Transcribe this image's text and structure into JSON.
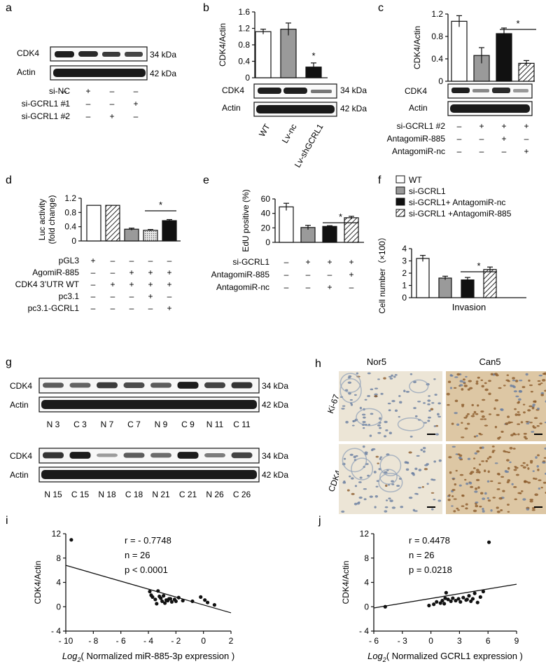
{
  "colors": {
    "open": "#ffffff",
    "gray": "#9a9a9a",
    "black": "#111111",
    "dotted": "#d8d8d8",
    "hatched": "#ffffff",
    "ihc_bg": "#e8dcc6",
    "ihc_blue": "#6a7ea0",
    "ihc_brown": "#8b5a2b"
  },
  "panel_a": {
    "letter": "a",
    "bands": [
      "CDK4",
      "Actin"
    ],
    "kda": [
      "34 kDa",
      "42 kDa"
    ],
    "rows": [
      {
        "label": "si-NC",
        "marks": [
          "–",
          "+",
          "–",
          "–"
        ]
      },
      {
        "label": "si-GCRL1 #1",
        "marks": [
          "–",
          "–",
          "–",
          "+"
        ]
      },
      {
        "label": "si-GCRL1 #2",
        "marks": [
          "–",
          "–",
          "+",
          "–"
        ]
      }
    ]
  },
  "panel_b": {
    "letter": "b",
    "bands": [
      "CDK4",
      "Actin"
    ],
    "kda": [
      "34 kDa",
      "42 kDa"
    ],
    "lanes": [
      "WT",
      "Lv-nc",
      "Lv-shGCRL1"
    ],
    "star": "*"
  },
  "panel_c": {
    "letter": "c",
    "bands": [
      "CDK4",
      "Actin"
    ],
    "star": "*",
    "rows": [
      {
        "label": "si-GCRL1 #2",
        "marks": [
          "–",
          "+",
          "+",
          "+"
        ]
      },
      {
        "label": "AntagomiR-885",
        "marks": [
          "–",
          "–",
          "+",
          "–"
        ]
      },
      {
        "label": "AntagomiR-nc",
        "marks": [
          "–",
          "–",
          "–",
          "+"
        ]
      }
    ]
  },
  "panel_d": {
    "letter": "d",
    "star": "*",
    "rows": [
      {
        "label": "pGL3",
        "marks": [
          "+",
          "–",
          "–",
          "–",
          "–"
        ]
      },
      {
        "label": "AgomiR-885",
        "marks": [
          "–",
          "–",
          "+",
          "+",
          "+"
        ]
      },
      {
        "label": "CDK4 3’UTR WT",
        "marks": [
          "–",
          "+",
          "+",
          "+",
          "+"
        ]
      },
      {
        "label": "pc3.1",
        "marks": [
          "–",
          "–",
          "–",
          "+",
          "–"
        ]
      },
      {
        "label": "pc3.1-GCRL1",
        "marks": [
          "–",
          "–",
          "–",
          "–",
          "+"
        ]
      }
    ]
  },
  "panel_e": {
    "letter": "e",
    "star": "*",
    "rows": [
      {
        "label": "si-GCRL1",
        "marks": [
          "–",
          "+",
          "+",
          "+"
        ]
      },
      {
        "label": "AntagomiR-885",
        "marks": [
          "–",
          "–",
          "–",
          "+"
        ]
      },
      {
        "label": "AntagomiR-nc",
        "marks": [
          "–",
          "–",
          "+",
          "–"
        ]
      }
    ]
  },
  "panel_f": {
    "letter": "f",
    "star": "*",
    "legend": [
      "WT",
      "si-GCRL1",
      "si-GCRL1+ AntagomiR-nc",
      "si-GCRL1 +AntagomiR-885"
    ]
  },
  "panel_g": {
    "letter": "g",
    "bands": [
      "CDK4",
      "Actin"
    ],
    "kda": [
      "34 kDa",
      "42 kDa"
    ],
    "lanes1": [
      "N 3",
      "C 3",
      "N 7",
      "C 7",
      "N 9",
      "C 9",
      "N 11",
      "C 11"
    ],
    "lanes2": [
      "N 15",
      "C 15",
      "N 18",
      "C 18",
      "N 21",
      "C 21",
      "N 26",
      "C 26"
    ]
  },
  "panel_h": {
    "letter": "h",
    "cols": [
      "Nor5",
      "Can5"
    ],
    "rows": [
      "Ki-67",
      "CDK4"
    ]
  },
  "panel_i": {
    "letter": "i",
    "stat_r": "r = - 0.7748",
    "stat_n": "n = 26",
    "stat_p": "p < 0.0001"
  },
  "panel_j": {
    "letter": "j",
    "stat_r": "r = 0.4478",
    "stat_n": "n = 26",
    "stat_p": "p = 0.0218"
  },
  "chart_data": [
    {
      "id": "b",
      "type": "bar",
      "ylabel": "CDK4/Actin",
      "ylim": [
        0,
        1.6
      ],
      "yticks": [
        "0",
        "0.4",
        "0.8",
        "1.2",
        "1.6"
      ],
      "tickvals": [
        0,
        0.4,
        0.8,
        1.2,
        1.6
      ],
      "categories": [
        "WT",
        "Lv-nc",
        "Lv-shGCRL1"
      ],
      "values": [
        1.12,
        1.18,
        0.26
      ],
      "errors": [
        0.06,
        0.15,
        0.1
      ],
      "fills": [
        "open",
        "gray",
        "black"
      ]
    },
    {
      "id": "c",
      "type": "bar",
      "ylabel": "CDK4/Actin",
      "ylim": [
        0,
        1.2
      ],
      "yticks": [
        "0",
        "0.4",
        "0.8",
        "1.2"
      ],
      "tickvals": [
        0,
        0.4,
        0.8,
        1.2
      ],
      "values": [
        1.07,
        0.46,
        0.85,
        0.32
      ],
      "errors": [
        0.1,
        0.14,
        0.1,
        0.05
      ],
      "fills": [
        "open",
        "gray",
        "black",
        "hatched"
      ]
    },
    {
      "id": "d",
      "type": "bar",
      "ylabel": "Luc activity",
      "ylabel2": "(fold change)",
      "ylim": [
        0,
        1.2
      ],
      "yticks": [
        "0",
        "0.4",
        "0.8",
        "1.2"
      ],
      "tickvals": [
        0,
        0.4,
        0.8,
        1.2
      ],
      "values": [
        1.0,
        1.0,
        0.33,
        0.3,
        0.57
      ],
      "errors": [
        0,
        0,
        0.03,
        0.02,
        0.03
      ],
      "fills": [
        "open",
        "hatched",
        "gray",
        "dotted",
        "black"
      ]
    },
    {
      "id": "e",
      "type": "bar",
      "ylabel": "EdU positive (%)",
      "ylim": [
        0,
        60
      ],
      "yticks": [
        "0",
        "20",
        "40",
        "60"
      ],
      "tickvals": [
        0,
        20,
        40,
        60
      ],
      "values": [
        49,
        20.5,
        22,
        34
      ],
      "errors": [
        5,
        3,
        1,
        2
      ],
      "fills": [
        "open",
        "gray",
        "black",
        "hatched"
      ]
    },
    {
      "id": "f",
      "type": "bar",
      "ylabel": "Cell number（×100）",
      "xlabel": "Invasion",
      "ylim": [
        0,
        4
      ],
      "yticks": [
        "0",
        "1",
        "2",
        "3",
        "4"
      ],
      "tickvals": [
        0,
        1,
        2,
        3,
        4
      ],
      "values": [
        3.2,
        1.6,
        1.45,
        2.3
      ],
      "errors": [
        0.25,
        0.15,
        0.2,
        0.2
      ],
      "fills": [
        "open",
        "gray",
        "black",
        "hatched"
      ]
    },
    {
      "id": "i",
      "type": "scatter",
      "ylabel": "CDK4/Actin",
      "xlabel_sub": "Log",
      "xlabel_sub2": "2",
      "xlabel_rest": "( Normalized miR-885-3p expression )",
      "xlim": [
        -10,
        2
      ],
      "ylim": [
        -4,
        12
      ],
      "xticks": [
        "- 10",
        "- 8",
        "- 6",
        "- 4",
        "- 2",
        "0",
        "2"
      ],
      "xtickvals": [
        -10,
        -8,
        -6,
        -4,
        -2,
        0,
        2
      ],
      "yticks": [
        "- 4",
        "0",
        "4",
        "8",
        "12"
      ],
      "ytickvals": [
        -4,
        0,
        4,
        8,
        12
      ],
      "x": [
        -9.6,
        -3.9,
        -3.7,
        -3.5,
        -3.3,
        -3.1,
        -3.0,
        -2.9,
        -2.7,
        -2.5,
        -2.3,
        -2.1,
        -1.8,
        -1.5,
        -0.8,
        -0.2,
        0.1,
        0.3,
        0.8,
        -3.8,
        -3.4,
        -3.2,
        -2.8,
        -2.6,
        -2.4,
        -2.0
      ],
      "y": [
        11,
        2.5,
        1.6,
        1.2,
        2.6,
        1.4,
        0.9,
        1.8,
        1.1,
        1.3,
        0.8,
        1.2,
        1.5,
        1.0,
        0.9,
        1.6,
        1.1,
        0.7,
        0.3,
        1.9,
        0.5,
        1.7,
        0.6,
        1.0,
        1.3,
        0.9
      ],
      "fit": {
        "x": [
          -10,
          2
        ],
        "y": [
          6.8,
          -1.0
        ]
      }
    },
    {
      "id": "j",
      "type": "scatter",
      "ylabel": "CDK4/Actin",
      "xlabel_sub": "Log",
      "xlabel_sub2": "2",
      "xlabel_rest": "( Normalized GCRL1 expression )",
      "xlim": [
        -6,
        9
      ],
      "ylim": [
        -4,
        12
      ],
      "xticks": [
        "- 6",
        "- 3",
        "0",
        "3",
        "6",
        "9"
      ],
      "xtickvals": [
        -6,
        -3,
        0,
        3,
        6,
        9
      ],
      "yticks": [
        "- 4",
        "0",
        "4",
        "8",
        "12"
      ],
      "ytickvals": [
        -4,
        0,
        4,
        8,
        12
      ],
      "x": [
        -4.8,
        -0.2,
        0.3,
        0.6,
        1.0,
        1.2,
        1.4,
        1.6,
        1.8,
        2.1,
        2.3,
        2.6,
        2.9,
        3.1,
        3.4,
        3.7,
        4.0,
        4.2,
        4.4,
        4.6,
        4.9,
        5.2,
        5.5,
        6.1,
        1.5,
        3.8
      ],
      "y": [
        0.0,
        0.2,
        0.4,
        0.8,
        0.6,
        1.0,
        0.5,
        2.3,
        1.2,
        0.9,
        1.4,
        1.0,
        1.3,
        0.8,
        1.5,
        1.1,
        1.8,
        0.9,
        1.3,
        2.2,
        0.7,
        1.6,
        2.5,
        10.6,
        1.4,
        1.2
      ],
      "fit": {
        "x": [
          -6,
          9
        ],
        "y": [
          -0.2,
          3.7
        ]
      }
    }
  ]
}
